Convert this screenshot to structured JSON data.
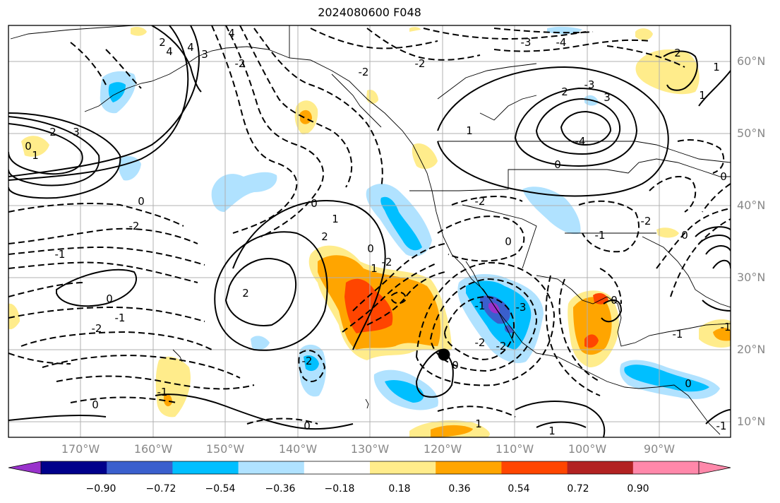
{
  "title": "2024080600 F048",
  "latitude_labels": [
    "60°N",
    "50°N",
    "40°N",
    "30°N",
    "20°N",
    "10°N"
  ],
  "longitude_labels": [
    "170°W",
    "160°W",
    "150°W",
    "140°W",
    "130°W",
    "120°W",
    "110°W",
    "100°W",
    "90°W"
  ],
  "colorbar": {
    "colors": [
      "#9932cc",
      "#00008b",
      "#3a5fcd",
      "#00bfff",
      "#b0e2ff",
      "#ffffff",
      "#ffec8b",
      "#ffa500",
      "#ff4500",
      "#b22222",
      "#ff88aa",
      "#ff88aa"
    ],
    "tick_labels": [
      "−0.90",
      "−0.72",
      "−0.54",
      "−0.36",
      "−0.18",
      "0.18",
      "0.36",
      "0.54",
      "0.72",
      "0.90"
    ]
  },
  "contour_labels": [
    "4",
    "4",
    "3",
    "2",
    "1",
    "0",
    "-2",
    "-2",
    "-3",
    "-4",
    "2",
    "3",
    "-4",
    "-3",
    "-2",
    "1",
    "0",
    "-2",
    "-1",
    "-2",
    "-1",
    "-2",
    "0",
    "-1",
    "0",
    "1",
    "2",
    "2",
    "1",
    "0",
    "-1",
    "-2",
    "-1",
    "-2",
    "-3",
    "-2",
    "0",
    "0",
    "-2",
    "0",
    "0",
    "-2",
    "-1",
    "0",
    "1",
    "2",
    "3",
    "4",
    "-1",
    "0",
    "0",
    "1",
    "2",
    "1",
    "0",
    "0",
    "-1",
    "1"
  ],
  "marker": "storm-center-dot"
}
